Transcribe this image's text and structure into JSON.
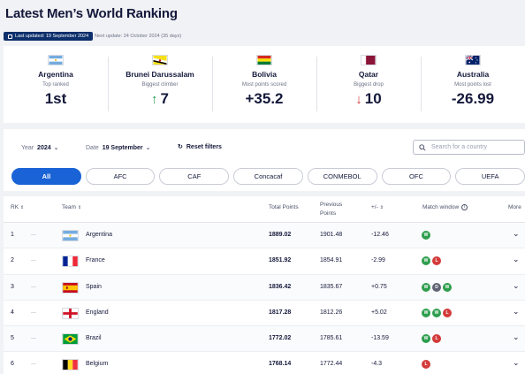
{
  "header": {
    "title": "Latest Men’s World Ranking",
    "last_updated": "Last updated: 19 September 2024",
    "next_update": "Next update: 24 October 2024 (35 days)"
  },
  "highlights": [
    {
      "country": "Argentina",
      "label": "Top ranked",
      "value": "1st",
      "arrow": ""
    },
    {
      "country": "Brunei Darussalam",
      "label": "Biggest climber",
      "value": "7",
      "arrow": "up"
    },
    {
      "country": "Bolivia",
      "label": "Most points scored",
      "value": "+35.2",
      "arrow": ""
    },
    {
      "country": "Qatar",
      "label": "Biggest drop",
      "value": "10",
      "arrow": "down"
    },
    {
      "country": "Australia",
      "label": "Most points lost",
      "value": "-26.99",
      "arrow": ""
    }
  ],
  "filters": {
    "year_label": "Year",
    "year_value": "2024",
    "date_label": "Date",
    "date_value": "19 September",
    "reset_label": "Reset filters",
    "search_placeholder": "Search for a country"
  },
  "confederations": [
    "All",
    "AFC",
    "CAF",
    "Concacaf",
    "CONMEBOL",
    "OFC",
    "UEFA"
  ],
  "table": {
    "headers": {
      "rk": "RK",
      "team": "Team",
      "total": "Total Points",
      "previous_1": "Previous",
      "previous_2": "Points",
      "change": "+/-",
      "match_window": "Match window",
      "more": "More"
    },
    "rows": [
      {
        "rank": "1",
        "team": "Argentina",
        "total": "1889.02",
        "previous": "1901.48",
        "change": "-12.46",
        "results": [
          "W"
        ]
      },
      {
        "rank": "2",
        "team": "France",
        "total": "1851.92",
        "previous": "1854.91",
        "change": "-2.99",
        "results": [
          "W",
          "L"
        ]
      },
      {
        "rank": "3",
        "team": "Spain",
        "total": "1836.42",
        "previous": "1835.67",
        "change": "+0.75",
        "results": [
          "W",
          "D",
          "W"
        ]
      },
      {
        "rank": "4",
        "team": "England",
        "total": "1817.28",
        "previous": "1812.26",
        "change": "+5.02",
        "results": [
          "W",
          "W",
          "L"
        ]
      },
      {
        "rank": "5",
        "team": "Brazil",
        "total": "1772.02",
        "previous": "1785.61",
        "change": "-13.59",
        "results": [
          "W",
          "L"
        ]
      },
      {
        "rank": "6",
        "team": "Belgium",
        "total": "1768.14",
        "previous": "1772.44",
        "change": "-4.3",
        "results": [
          "L"
        ]
      }
    ]
  },
  "colors": {
    "accent": "#1a63d6",
    "badge_bg": "#0d2f6c",
    "win": "#2e9e4e",
    "draw": "#5f6473",
    "loss": "#d33b3b"
  }
}
